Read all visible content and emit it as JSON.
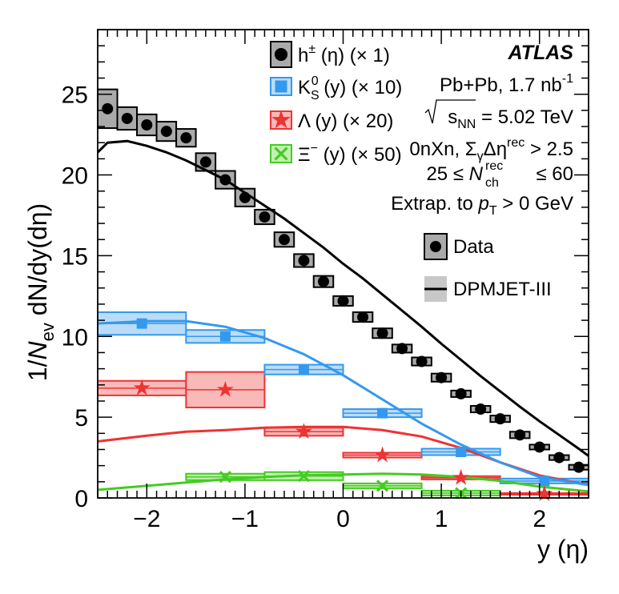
{
  "chart_data": {
    "type": "scatter",
    "title": "",
    "xlabel": "y (η)",
    "ylabel": "1/N_ev dN/dy(dη)",
    "xlim": [
      -2.5,
      2.5
    ],
    "ylim": [
      0,
      29
    ],
    "x_ticks": [
      "−2",
      "−1",
      "0",
      "1",
      "2"
    ],
    "x_tick_values": [
      -2,
      -1,
      0,
      1,
      2
    ],
    "y_ticks": [
      "0",
      "5",
      "10",
      "15",
      "20",
      "25"
    ],
    "y_tick_values": [
      0,
      5,
      10,
      15,
      20,
      25
    ],
    "grid": false,
    "series": [
      {
        "name": "h± (η) (× 1)",
        "legend_main": "h",
        "legend_sup": "±",
        "legend_sub": "",
        "legend_rest": " (η) (× 1)",
        "marker": "circle",
        "color": "#000000",
        "fill": "#aaaaaa",
        "x": [
          -2.4,
          -2.2,
          -2.0,
          -1.8,
          -1.6,
          -1.4,
          -1.2,
          -1.0,
          -0.8,
          -0.6,
          -0.4,
          -0.2,
          0.0,
          0.2,
          0.4,
          0.6,
          0.8,
          1.0,
          1.2,
          1.4,
          1.6,
          1.8,
          2.0,
          2.2,
          2.4
        ],
        "values": [
          24.1,
          23.5,
          23.1,
          22.7,
          22.3,
          20.8,
          19.7,
          18.6,
          17.4,
          16.0,
          14.7,
          13.4,
          12.2,
          11.2,
          10.2,
          9.25,
          8.45,
          7.45,
          6.45,
          5.5,
          4.9,
          3.9,
          3.15,
          2.5,
          1.9
        ],
        "x_err": 0.1,
        "sys_err": [
          1.2,
          0.7,
          0.65,
          0.6,
          0.55,
          0.55,
          0.55,
          0.55,
          0.45,
          0.45,
          0.4,
          0.35,
          0.3,
          0.3,
          0.3,
          0.25,
          0.25,
          0.25,
          0.2,
          0.2,
          0.2,
          0.2,
          0.15,
          0.15,
          0.15
        ],
        "model_x": [
          -2.5,
          -2.4,
          -2.2,
          -2.0,
          -1.8,
          -1.6,
          -1.4,
          -1.2,
          -1.0,
          -0.8,
          -0.6,
          -0.4,
          -0.2,
          0.0,
          0.2,
          0.4,
          0.6,
          0.8,
          1.0,
          1.2,
          1.4,
          1.6,
          1.8,
          2.0,
          2.2,
          2.4,
          2.5
        ],
        "model_y": [
          21.4,
          22.0,
          22.1,
          21.8,
          21.4,
          20.9,
          20.3,
          19.7,
          18.9,
          18.1,
          17.3,
          16.4,
          15.5,
          14.5,
          13.6,
          12.6,
          11.6,
          10.6,
          9.55,
          8.55,
          7.55,
          6.6,
          5.65,
          4.75,
          3.9,
          3.05,
          2.6
        ]
      },
      {
        "name": "K0S (y) (× 10)",
        "legend_main": "K",
        "legend_sup": "0",
        "legend_sub": "S",
        "legend_rest": " (y) (× 10)",
        "marker": "square",
        "color": "#3399ee",
        "fill": "#bbdcf8",
        "x": [
          -2.05,
          -1.2,
          -0.4,
          0.4,
          1.2,
          2.05
        ],
        "values": [
          10.8,
          10.0,
          7.95,
          5.25,
          2.85,
          1.05
        ],
        "x_lo": [
          -2.5,
          -1.6,
          -0.8,
          0.0,
          0.8,
          1.6
        ],
        "x_hi": [
          -1.6,
          -0.8,
          0.0,
          0.8,
          1.6,
          2.5
        ],
        "sys_err": [
          0.7,
          0.4,
          0.3,
          0.25,
          0.2,
          0.15
        ],
        "model_x": [
          -2.5,
          -2.0,
          -1.6,
          -1.2,
          -0.8,
          -0.4,
          0.0,
          0.4,
          0.8,
          1.2,
          1.6,
          2.0,
          2.5
        ],
        "model_y": [
          10.8,
          10.95,
          10.95,
          10.6,
          9.9,
          8.9,
          7.6,
          6.1,
          4.6,
          3.3,
          2.2,
          1.3,
          0.8
        ]
      },
      {
        "name": "Λ (y) (× 20)",
        "legend_main": "Λ",
        "legend_sup": "",
        "legend_sub": "",
        "legend_rest": " (y) (× 20)",
        "marker": "star",
        "color": "#ee3333",
        "fill": "#f9b9b9",
        "x": [
          -2.05,
          -1.2,
          -0.4,
          0.4,
          1.2,
          2.05
        ],
        "values": [
          6.8,
          6.7,
          4.1,
          2.65,
          1.25,
          0.25
        ],
        "x_lo": [
          -2.5,
          -1.6,
          -0.8,
          0.0,
          0.8,
          1.6
        ],
        "x_hi": [
          -1.6,
          -0.8,
          0.0,
          0.8,
          1.6,
          2.5
        ],
        "sys_err": [
          0.45,
          1.1,
          0.25,
          0.15,
          0.1,
          0.05
        ],
        "model_x": [
          -2.5,
          -2.0,
          -1.6,
          -1.2,
          -0.8,
          -0.4,
          0.0,
          0.4,
          0.8,
          1.2,
          1.6,
          2.0,
          2.5
        ],
        "model_y": [
          3.5,
          3.85,
          4.1,
          4.2,
          4.35,
          4.4,
          4.4,
          4.2,
          3.8,
          3.1,
          2.2,
          1.4,
          0.8
        ]
      },
      {
        "name": "Ξ− (y) (× 50)",
        "legend_main": "Ξ",
        "legend_sup": "−",
        "legend_sub": "",
        "legend_rest": " (y) (× 50)",
        "marker": "xcross",
        "color": "#44cc22",
        "fill": "#c4efb4",
        "x": [
          -1.2,
          -0.4,
          0.4,
          1.2
        ],
        "values": [
          1.3,
          1.35,
          0.75,
          0.3
        ],
        "x_lo": [
          -1.6,
          -0.8,
          0.0,
          0.8
        ],
        "x_hi": [
          -0.8,
          0.0,
          0.8,
          1.6
        ],
        "sys_err": [
          0.2,
          0.25,
          0.15,
          0.15
        ],
        "model_x": [
          -2.5,
          -2.0,
          -1.6,
          -1.2,
          -0.8,
          -0.4,
          0.0,
          0.4,
          0.8,
          1.2,
          1.6,
          2.0,
          2.5
        ],
        "model_y": [
          0.5,
          0.75,
          0.95,
          1.15,
          1.3,
          1.4,
          1.45,
          1.5,
          1.45,
          1.3,
          1.05,
          0.7,
          0.4
        ]
      }
    ],
    "legend_labels": {
      "data": "Data",
      "model": "DPMJET-III"
    },
    "annotations": {
      "experiment": "ATLAS",
      "system_text": "Pb+Pb, 1.7 nb",
      "system_sup": "-1",
      "energy_sqrt": "s",
      "energy_sub": "NN",
      "energy_rest": " = 5.02 TeV",
      "selection_main": "0nXn, Σ",
      "selection_sub": "γ",
      "selection_mid": "Δη",
      "selection_sup": "rec",
      "selection_rest": " > 2.5",
      "nch_lhs": "25 ≤ ",
      "nch_symbol": "N",
      "nch_sup": "rec",
      "nch_sub": "ch",
      "nch_rhs": " ≤ 60",
      "extrap_main": "Extrap. to ",
      "extrap_sym": "p",
      "extrap_sub": "T",
      "extrap_rest": " > 0 GeV"
    },
    "ylabel_parts": {
      "a": "1/",
      "b": "N",
      "c": "ev",
      "d": " dN/dy(dη)"
    }
  }
}
